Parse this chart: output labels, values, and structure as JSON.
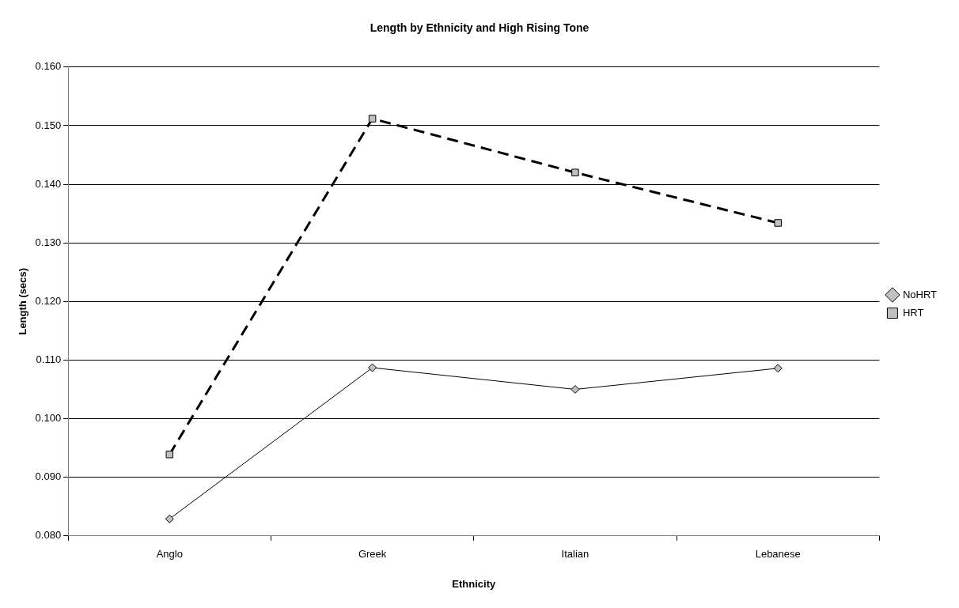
{
  "chart_data": {
    "type": "line",
    "title": "Length by Ethnicity and High Rising Tone",
    "xlabel": "Ethnicity",
    "ylabel": "Length (secs)",
    "categories": [
      "Anglo",
      "Greek",
      "Italian",
      "Lebanese"
    ],
    "series": [
      {
        "name": "NoHRT",
        "color": "#000000",
        "values": [
          0.0829,
          0.1087,
          0.105,
          0.1086
        ],
        "marker": "diamond",
        "line_style": "solid"
      },
      {
        "name": "HRT",
        "color": "#000000",
        "values": [
          0.0939,
          0.1512,
          0.142,
          0.1334
        ],
        "marker": "square",
        "line_style": "dashed"
      }
    ],
    "ylim": [
      0.08,
      0.16
    ],
    "yticks": [
      {
        "value": 0.08,
        "label": "0.080"
      },
      {
        "value": 0.09,
        "label": "0.090"
      },
      {
        "value": 0.1,
        "label": "0.100"
      },
      {
        "value": 0.11,
        "label": "0.110"
      },
      {
        "value": 0.12,
        "label": "0.120"
      },
      {
        "value": 0.13,
        "label": "0.130"
      },
      {
        "value": 0.14,
        "label": "0.140"
      },
      {
        "value": 0.15,
        "label": "0.150"
      },
      {
        "value": 0.16,
        "label": "0.160"
      }
    ],
    "grid": "y",
    "legend": "right"
  }
}
